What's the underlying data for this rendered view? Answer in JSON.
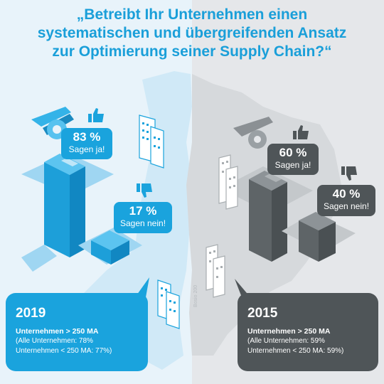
{
  "title": {
    "line1": "„Betreibt Ihr Unternehmen einen",
    "line2": "systematischen und übergreifenden Ansatz",
    "line3": "zur Optimierung seiner Supply Chain?“"
  },
  "colors": {
    "accent_blue": "#1aa3dd",
    "dark_grey": "#4f5558",
    "light_blue_bg": "#e8f3fa",
    "light_grey_bg": "#e5e7ea"
  },
  "year_2019": {
    "yes_percent": "83 %",
    "yes_label": "Sagen ja!",
    "no_percent": "17 %",
    "no_label": "Sagen nein!",
    "year": "2019",
    "line1": "Unternehmen > 250 MA",
    "line2": "(Alle Unternehmen: 78%",
    "line3": "Unternehmen < 250 MA: 77%)"
  },
  "year_2015": {
    "yes_percent": "60 %",
    "yes_label": "Sagen ja!",
    "no_percent": "40 %",
    "no_label": "Sagen nein!",
    "year": "2015",
    "line1": "Unternehmen > 250 MA",
    "line2": "(Alle Unternehmen: 59%",
    "line3": "Unternehmen < 250 MA: 59%)"
  },
  "credit": "Bosio 200",
  "icons": [
    "thumbs-up-icon",
    "thumbs-down-icon",
    "wrench-icon",
    "building-icon",
    "box-icon"
  ]
}
